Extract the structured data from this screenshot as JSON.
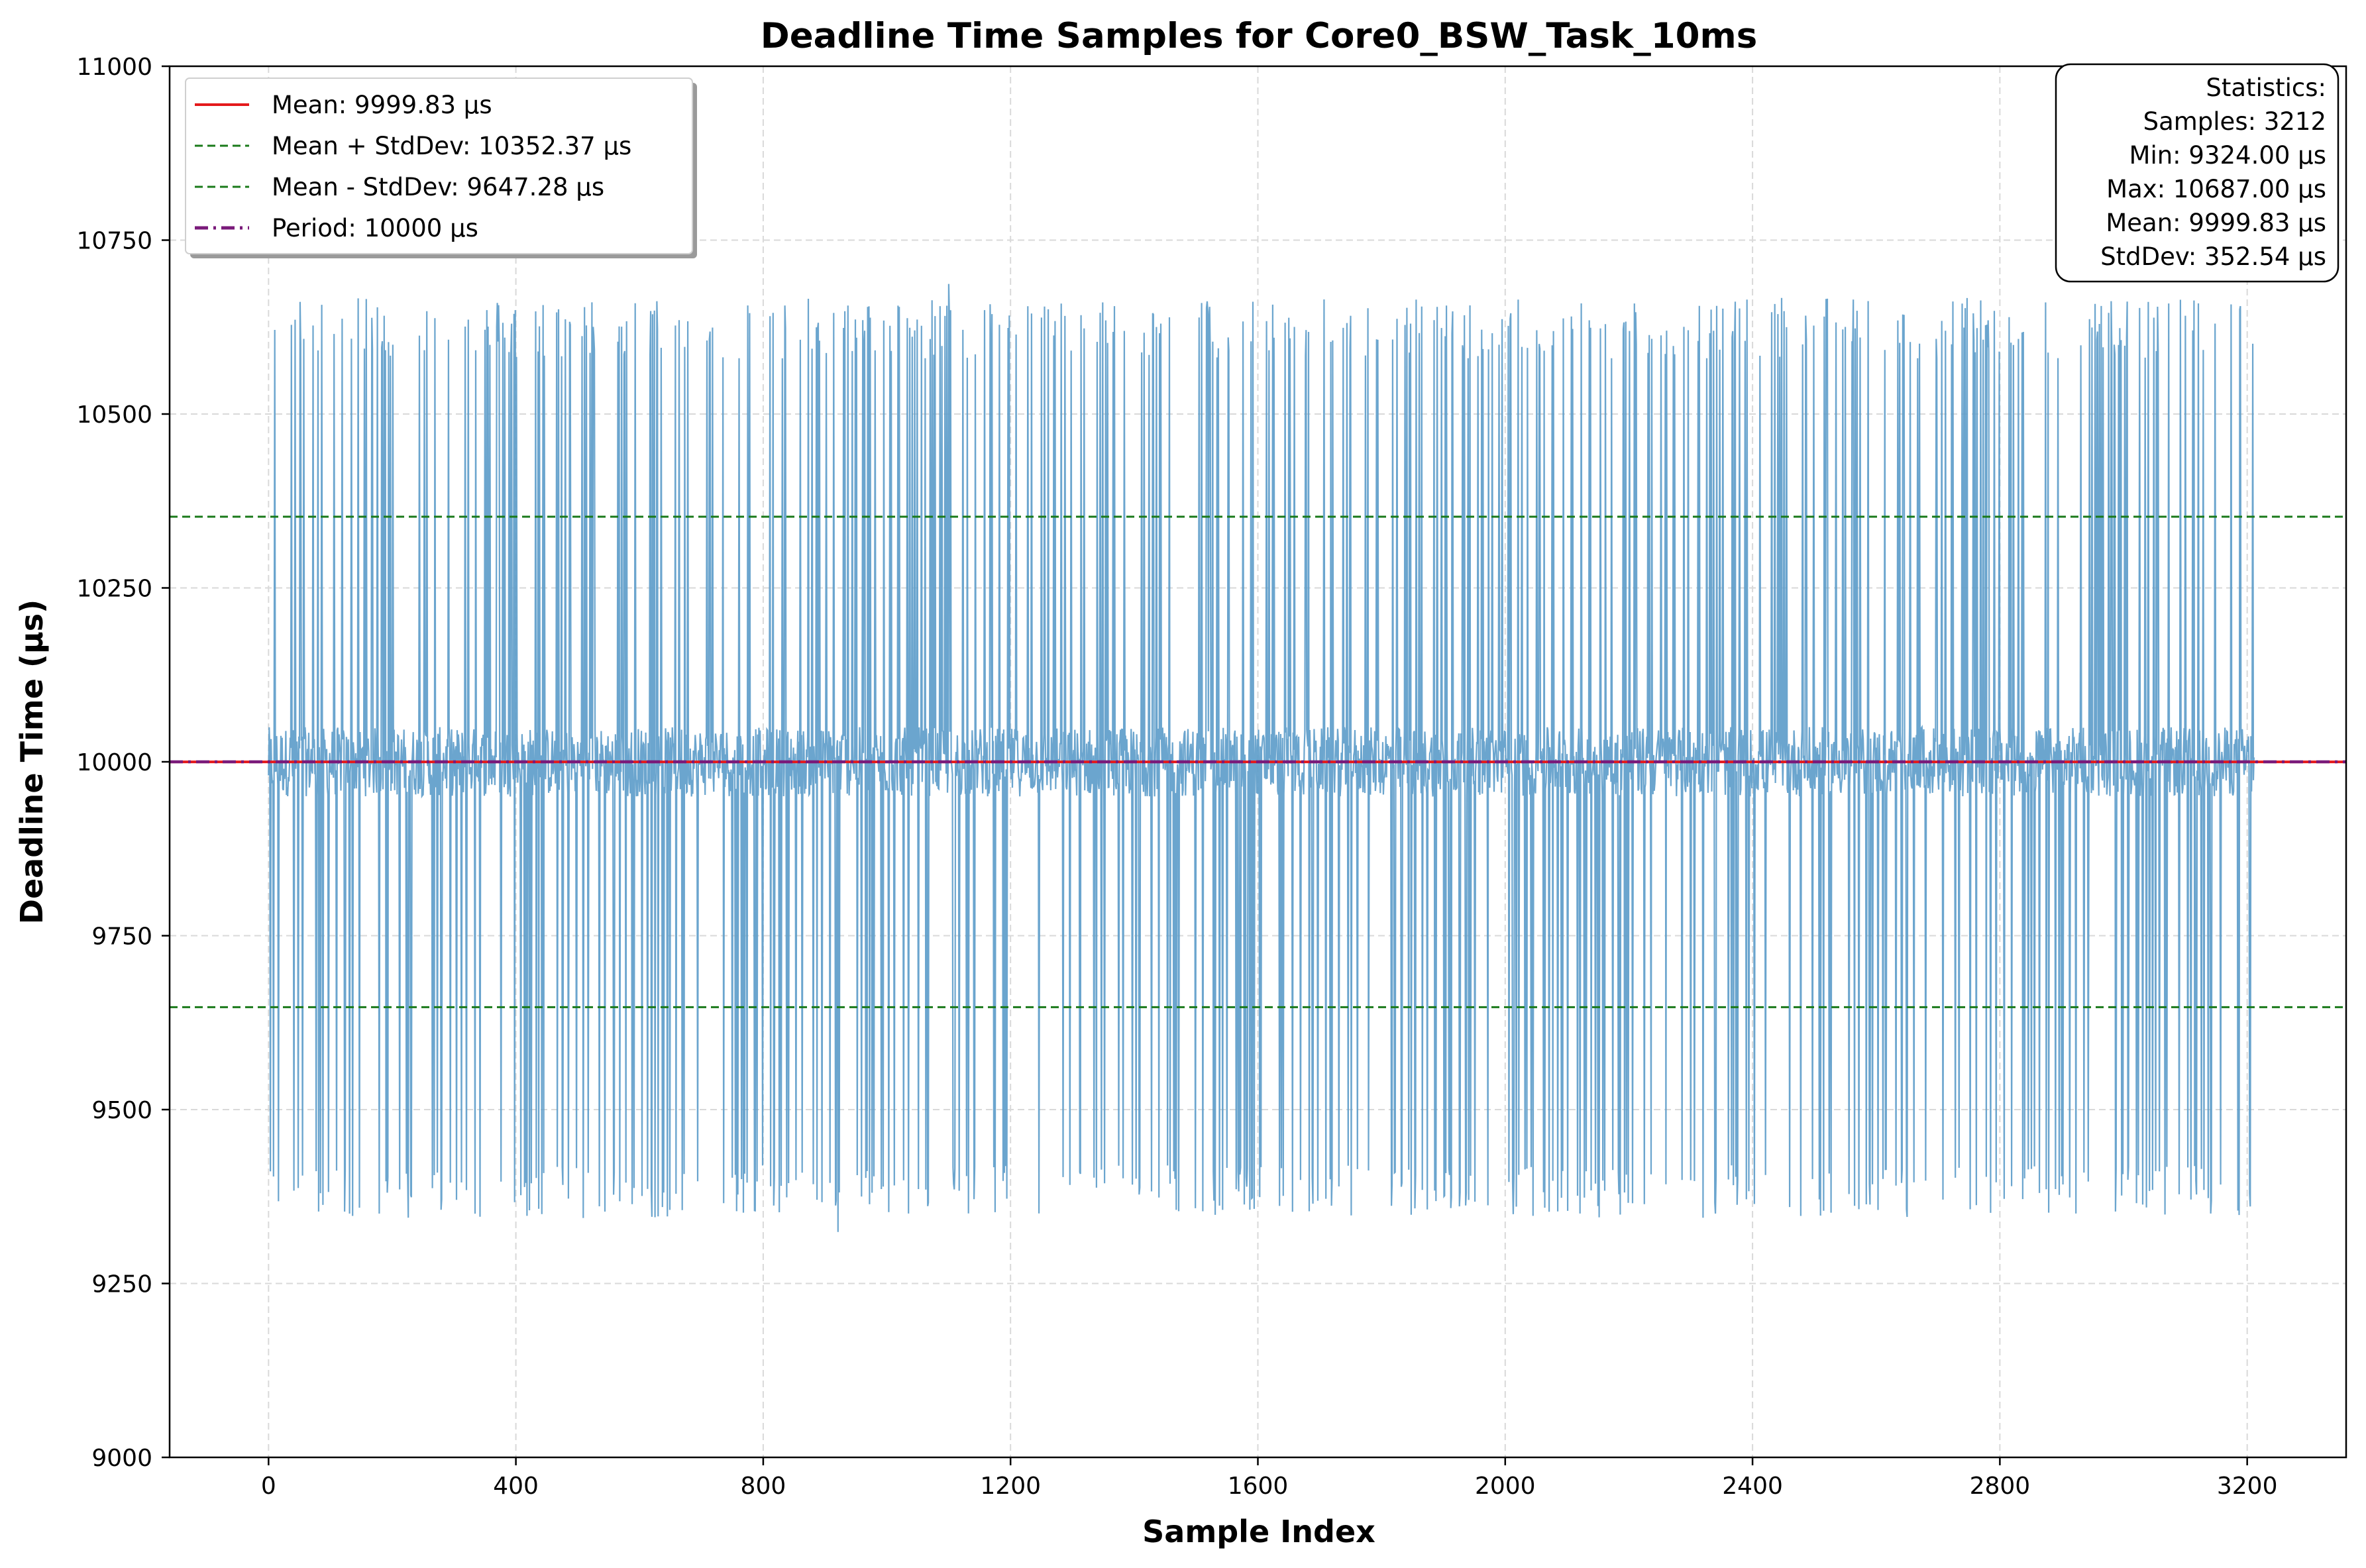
{
  "chart_data": {
    "type": "line",
    "title": "Deadline Time Samples for Core0_BSW_Task_10ms",
    "xlabel": "Sample Index",
    "ylabel": "Deadline Time (µs)",
    "xlim": [
      -160,
      3360
    ],
    "ylim": [
      9000,
      11000
    ],
    "xticks": [
      0,
      400,
      800,
      1200,
      1600,
      2000,
      2400,
      2800,
      3200
    ],
    "yticks": [
      9000,
      9250,
      9500,
      9750,
      10000,
      10250,
      10500,
      10750,
      11000
    ],
    "grid": true,
    "legend_position": "top-left",
    "series": [
      {
        "name": "Deadline Time",
        "color": "#5b9bc9",
        "sample_count": 3212,
        "x_range": [
          0,
          3211
        ],
        "baseline": 10000,
        "typical_band": [
          9950,
          10050
        ],
        "high_spike_range": [
          10580,
          10687
        ],
        "low_spike_range": [
          9324,
          9420
        ],
        "min": 9324.0,
        "max": 10687.0,
        "sparse_spike_regions": [
          [
            0,
            40
          ],
          [
            3215,
            3212
          ]
        ]
      }
    ],
    "reference_lines": [
      {
        "name": "Mean: 9999.83 µs",
        "value": 9999.83,
        "color": "#e41a1c",
        "style": "solid"
      },
      {
        "name": "Mean + StdDev: 10352.37 µs",
        "value": 10352.37,
        "color": "#1a7a1a",
        "style": "dashed"
      },
      {
        "name": "Mean - StdDev: 9647.28 µs",
        "value": 9647.28,
        "color": "#1a7a1a",
        "style": "dashed"
      },
      {
        "name": "Period: 10000 µs",
        "value": 10000,
        "color": "#7a1a7a",
        "style": "dashdot"
      }
    ],
    "stats_box": [
      "Statistics:",
      "Samples: 3212",
      "Min: 9324.00 µs",
      "Max: 10687.00 µs",
      "Mean: 9999.83 µs",
      "StdDev: 352.54 µs"
    ]
  }
}
